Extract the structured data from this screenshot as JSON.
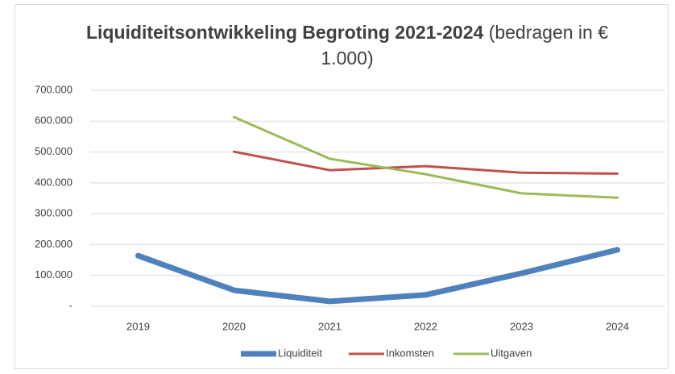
{
  "chart_data": {
    "type": "line",
    "title": "Liquiditeitsontwikkeling Begroting 2021-2024",
    "subtitle": "(bedragen in € 1.000)",
    "categories": [
      "2019",
      "2020",
      "2021",
      "2022",
      "2023",
      "2024"
    ],
    "series": [
      {
        "name": "Liquiditeit",
        "color": "#4f81bd",
        "width": 7,
        "values": [
          164000,
          52000,
          16000,
          37000,
          107000,
          183000
        ]
      },
      {
        "name": "Inkomsten",
        "color": "#c0504d",
        "width": 3,
        "values": [
          null,
          501000,
          441000,
          454000,
          433000,
          430000
        ]
      },
      {
        "name": "Uitgaven",
        "color": "#9bbb59",
        "width": 3,
        "values": [
          null,
          613000,
          478000,
          428000,
          366000,
          352000
        ]
      }
    ],
    "ylim": [
      0,
      700000
    ],
    "yticks": [
      {
        "value": 0,
        "label": "-"
      },
      {
        "value": 100000,
        "label": "100.000"
      },
      {
        "value": 200000,
        "label": "200.000"
      },
      {
        "value": 300000,
        "label": "300.000"
      },
      {
        "value": 400000,
        "label": "400.000"
      },
      {
        "value": 500000,
        "label": "500.000"
      },
      {
        "value": 600000,
        "label": "600.000"
      },
      {
        "value": 700000,
        "label": "700.000"
      }
    ],
    "grid": true,
    "legend": "bottom"
  }
}
